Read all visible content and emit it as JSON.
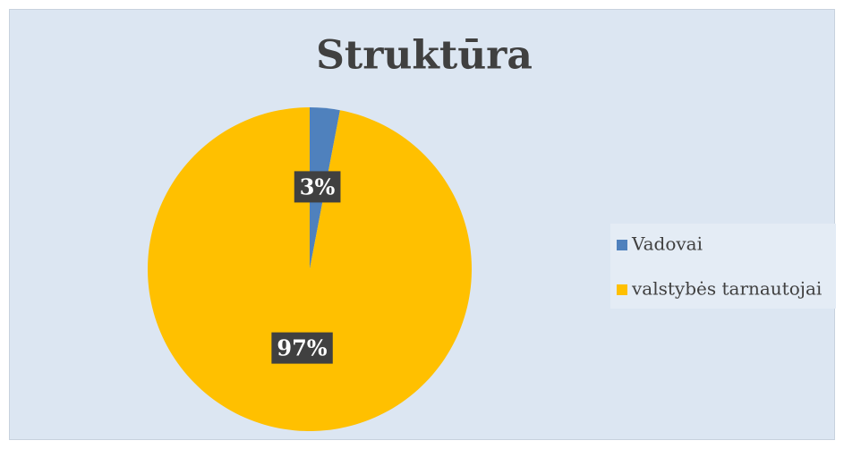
{
  "chart_data": {
    "type": "pie",
    "title": "Struktūra",
    "categories": [
      "Vadovai",
      "valstybės tarnautojai"
    ],
    "values": [
      3,
      97
    ],
    "value_labels": [
      "3%",
      "97%"
    ],
    "colors": [
      "#4f81bd",
      "#ffc000"
    ],
    "legend": "right"
  }
}
